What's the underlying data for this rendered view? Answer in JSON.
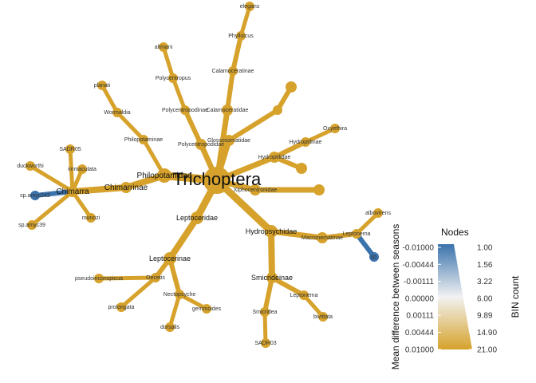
{
  "diagram": {
    "root_label": "Trichoptera",
    "colors": {
      "gold": "#d6a22b",
      "blue": "#3b73ac"
    },
    "nodes": [
      {
        "id": "trichoptera",
        "label": "Trichoptera"
      },
      {
        "id": "philopotamidae",
        "label": "Philopotamidae"
      },
      {
        "id": "chimarrinae",
        "label": "Chimarrinae"
      },
      {
        "id": "chimarra",
        "label": "Chimarra"
      },
      {
        "id": "sadr05",
        "label": "SADR05"
      },
      {
        "id": "duckworthi",
        "label": "duckworthi"
      },
      {
        "id": "immaculata",
        "label": "immaculata"
      },
      {
        "id": "spamyc242",
        "label": "sp.amyc242"
      },
      {
        "id": "spamyc39",
        "label": "sp.amyc39"
      },
      {
        "id": "munozi",
        "label": "munozi"
      },
      {
        "id": "philopotaminae",
        "label": "Philopotaminae"
      },
      {
        "id": "wormaldia",
        "label": "Wormaldia"
      },
      {
        "id": "planati",
        "label": "planati"
      },
      {
        "id": "polycentropodidae",
        "label": "Polycentropodidae"
      },
      {
        "id": "polycentropodinae",
        "label": "Polycentropodinae"
      },
      {
        "id": "polycentropus",
        "label": "Polycentropus"
      },
      {
        "id": "altmani",
        "label": "altmani"
      },
      {
        "id": "glossosomatidae",
        "label": "Glossosomatidae"
      },
      {
        "id": "calamoceratidae",
        "label": "Calamoceratidae"
      },
      {
        "id": "calamoceratinae",
        "label": "Calamoceratinae"
      },
      {
        "id": "phylloicus",
        "label": "Phylloicus"
      },
      {
        "id": "elegans",
        "label": "elegans"
      },
      {
        "id": "glosso_leaf",
        "label": ""
      },
      {
        "id": "glosso_tip",
        "label": ""
      },
      {
        "id": "hydroptilidae",
        "label": "Hydroptilidae"
      },
      {
        "id": "hydroptilinae",
        "label": "Hydroptilinae"
      },
      {
        "id": "oxyethira",
        "label": "Oxyethira"
      },
      {
        "id": "hydropt_leaf",
        "label": ""
      },
      {
        "id": "xiphocentronidae",
        "label": "Xiphocentronidae"
      },
      {
        "id": "xipho_leaf",
        "label": ""
      },
      {
        "id": "hydropsychidae",
        "label": "Hydropsychidae"
      },
      {
        "id": "macronematinae",
        "label": "Macronematinae"
      },
      {
        "id": "leptonema_a",
        "label": "Leptonema"
      },
      {
        "id": "albovirens",
        "label": "albovirens"
      },
      {
        "id": "sp",
        "label": "sp."
      },
      {
        "id": "smicrideinae",
        "label": "Smicrideinae"
      },
      {
        "id": "smicridea",
        "label": "Smicridea"
      },
      {
        "id": "sadr03",
        "label": "SADR03"
      },
      {
        "id": "leptonema_b",
        "label": "Leptonema"
      },
      {
        "id": "bivittata",
        "label": "bivittata"
      },
      {
        "id": "leptoceridae",
        "label": "Leptoceridae"
      },
      {
        "id": "leptocerinae",
        "label": "Leptocerinae"
      },
      {
        "id": "oecetis",
        "label": "Oecetis"
      },
      {
        "id": "pseudoinconspicua",
        "label": "pseudoinconspicua"
      },
      {
        "id": "prolongata",
        "label": "prolongata"
      },
      {
        "id": "nectopsyche",
        "label": "Nectopsyche"
      },
      {
        "id": "gemmoides",
        "label": "gemmoides"
      },
      {
        "id": "dorsalis",
        "label": "dorsalis"
      }
    ]
  },
  "legend": {
    "title": "Nodes",
    "color_axis_title": "Mean difference between seasons",
    "size_axis_title": "BIN count",
    "color_ticks": [
      "-0.01000",
      "-0.00444",
      "-0.00111",
      "0.00000",
      "0.00111",
      "0.00444",
      "0.01000"
    ],
    "size_ticks": [
      "1.00",
      "1.56",
      "3.22",
      "6.00",
      "9.89",
      "14.90",
      "21.00"
    ],
    "gradient_top": "#3b73ac",
    "gradient_mid": "#f2f2f2",
    "gradient_bottom": "#d6a22b"
  }
}
